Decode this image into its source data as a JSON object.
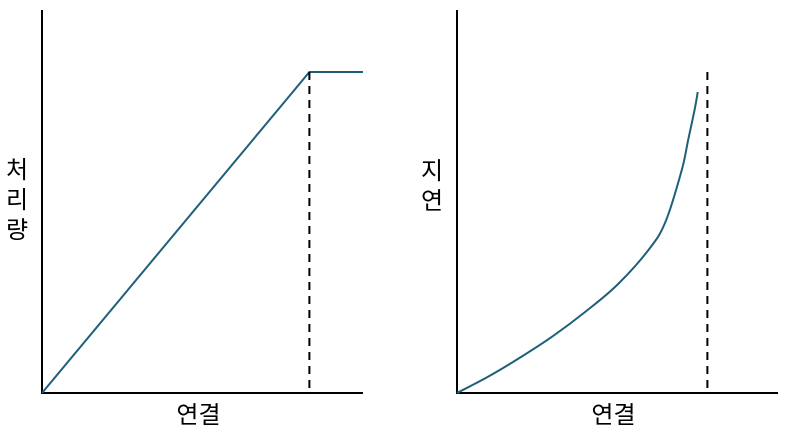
{
  "chart_data": [
    {
      "type": "line",
      "title": "",
      "xlabel": "연결",
      "ylabel": "처리량",
      "xlim": [
        0,
        1
      ],
      "ylim": [
        0,
        1
      ],
      "grid": false,
      "series": [
        {
          "color": "#1f5f7a",
          "x": [
            0,
            0.833,
            1.0
          ],
          "y": [
            0,
            1.0,
            1.0
          ]
        }
      ],
      "limit_x": 0.833
    },
    {
      "type": "line",
      "title": "",
      "xlabel": "연결",
      "ylabel": "지연",
      "xlim": [
        0,
        1
      ],
      "ylim": [
        0,
        1
      ],
      "grid": false,
      "series": [
        {
          "color": "#1f5f7a",
          "x": [
            0,
            0.1,
            0.2,
            0.3,
            0.4,
            0.5,
            0.6,
            0.65,
            0.7,
            0.72,
            0.74,
            0.75
          ],
          "y": [
            0,
            0.056,
            0.12,
            0.19,
            0.27,
            0.36,
            0.48,
            0.57,
            0.74,
            0.84,
            0.94,
            1.0
          ]
        }
      ],
      "limit_x": 0.78
    }
  ]
}
